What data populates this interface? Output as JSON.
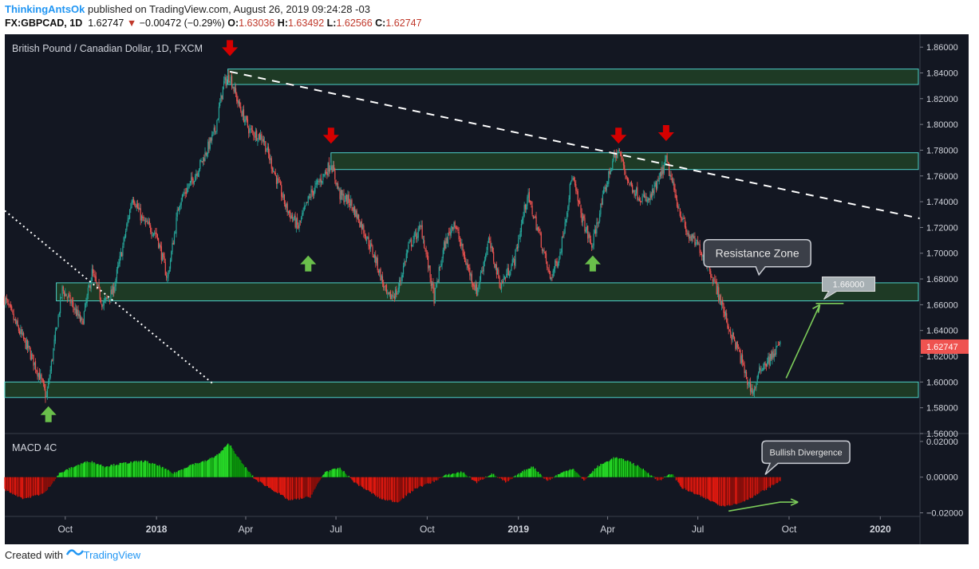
{
  "header": {
    "user": "ThinkingAntsOk",
    "published": "published on TradingView.com, August 26, 2019 09:24:28 -03",
    "symbol": "FX:GBPCAD, 1D",
    "last": "1.62747",
    "change": "−0.00472 (−0.29%)",
    "o_label": "O:",
    "o_value": "1.63036",
    "h_label": "H:",
    "h_value": "1.63492",
    "l_label": "L:",
    "l_value": "1.62566",
    "c_label": "C:",
    "c_value": "1.62747"
  },
  "footer": {
    "created_with": "Created with",
    "brand": "TradingView"
  },
  "colors": {
    "background": "#131722",
    "up": "#26a69a",
    "down": "#ef5350",
    "zone_fill": "#1e3a25",
    "zone_border": "#4dd0c8",
    "arrow_down": "#d50000",
    "arrow_up": "#6abf4b",
    "macd_up": "#26d926",
    "macd_down": "#e0180f",
    "price_tag": "#ef5350"
  },
  "chart_data": [
    {
      "type": "candlestick",
      "title": "British Pound / Canadian Dollar, 1D, FXCM",
      "ylim": [
        1.56,
        1.87
      ],
      "y_ticks": [
        "1.86000",
        "1.84000",
        "1.82000",
        "1.80000",
        "1.78000",
        "1.76000",
        "1.74000",
        "1.72000",
        "1.70000",
        "1.68000",
        "1.66000",
        "1.64000",
        "1.62000",
        "1.60000",
        "1.58000",
        "1.56000"
      ],
      "x_ticks": [
        "Oct",
        "2018",
        "Apr",
        "Jul",
        "Oct",
        "2019",
        "Apr",
        "Jul",
        "Oct",
        "2020"
      ],
      "x_start": "2017-08-01",
      "x_end": "2020-02-10",
      "last_price": "1.62747",
      "close_path": [
        [
          "2017-08-01",
          1.665
        ],
        [
          "2017-08-12",
          1.645
        ],
        [
          "2017-08-25",
          1.625
        ],
        [
          "2017-09-05",
          1.605
        ],
        [
          "2017-09-12",
          1.588
        ],
        [
          "2017-09-20",
          1.63
        ],
        [
          "2017-09-28",
          1.672
        ],
        [
          "2017-10-08",
          1.66
        ],
        [
          "2017-10-18",
          1.645
        ],
        [
          "2017-10-28",
          1.685
        ],
        [
          "2017-11-08",
          1.66
        ],
        [
          "2017-11-18",
          1.67
        ],
        [
          "2017-11-28",
          1.705
        ],
        [
          "2017-12-08",
          1.745
        ],
        [
          "2017-12-18",
          1.725
        ],
        [
          "2018-01-01",
          1.715
        ],
        [
          "2018-01-12",
          1.68
        ],
        [
          "2018-01-24",
          1.74
        ],
        [
          "2018-02-05",
          1.755
        ],
        [
          "2018-02-18",
          1.775
        ],
        [
          "2018-03-01",
          1.795
        ],
        [
          "2018-03-10",
          1.832
        ],
        [
          "2018-03-16",
          1.838
        ],
        [
          "2018-03-25",
          1.815
        ],
        [
          "2018-04-05",
          1.795
        ],
        [
          "2018-04-18",
          1.79
        ],
        [
          "2018-05-01",
          1.76
        ],
        [
          "2018-05-12",
          1.735
        ],
        [
          "2018-05-24",
          1.72
        ],
        [
          "2018-06-05",
          1.745
        ],
        [
          "2018-06-18",
          1.76
        ],
        [
          "2018-06-26",
          1.77
        ],
        [
          "2018-07-05",
          1.745
        ],
        [
          "2018-07-15",
          1.74
        ],
        [
          "2018-07-28",
          1.72
        ],
        [
          "2018-08-10",
          1.695
        ],
        [
          "2018-08-22",
          1.665
        ],
        [
          "2018-09-01",
          1.67
        ],
        [
          "2018-09-12",
          1.705
        ],
        [
          "2018-09-25",
          1.72
        ],
        [
          "2018-10-08",
          1.665
        ],
        [
          "2018-10-18",
          1.705
        ],
        [
          "2018-10-28",
          1.725
        ],
        [
          "2018-11-08",
          1.695
        ],
        [
          "2018-11-20",
          1.67
        ],
        [
          "2018-12-02",
          1.71
        ],
        [
          "2018-12-14",
          1.675
        ],
        [
          "2018-12-28",
          1.695
        ],
        [
          "2019-01-10",
          1.745
        ],
        [
          "2019-01-22",
          1.715
        ],
        [
          "2019-02-02",
          1.68
        ],
        [
          "2019-02-12",
          1.7
        ],
        [
          "2019-02-24",
          1.76
        ],
        [
          "2019-03-06",
          1.728
        ],
        [
          "2019-03-16",
          1.705
        ],
        [
          "2019-03-28",
          1.745
        ],
        [
          "2019-04-06",
          1.772
        ],
        [
          "2019-04-12",
          1.78
        ],
        [
          "2019-04-22",
          1.755
        ],
        [
          "2019-05-02",
          1.745
        ],
        [
          "2019-05-12",
          1.74
        ],
        [
          "2019-05-22",
          1.755
        ],
        [
          "2019-05-30",
          1.772
        ],
        [
          "2019-06-10",
          1.74
        ],
        [
          "2019-06-20",
          1.715
        ],
        [
          "2019-07-02",
          1.705
        ],
        [
          "2019-07-12",
          1.69
        ],
        [
          "2019-07-22",
          1.668
        ],
        [
          "2019-08-02",
          1.64
        ],
        [
          "2019-08-12",
          1.622
        ],
        [
          "2019-08-20",
          1.6
        ],
        [
          "2019-08-26",
          1.592
        ],
        [
          "2019-09-03",
          1.612
        ],
        [
          "2019-09-12",
          1.618
        ],
        [
          "2019-09-22",
          1.63
        ]
      ],
      "zones": [
        {
          "start": "2018-03-14",
          "top": 1.843,
          "bottom": 1.831
        },
        {
          "start": "2018-06-26",
          "top": 1.778,
          "bottom": 1.765
        },
        {
          "start": "2017-09-22",
          "top": 1.677,
          "bottom": 1.663
        },
        {
          "start": "2017-08-01",
          "top": 1.6,
          "bottom": 1.588
        }
      ],
      "trendlines": [
        {
          "style": "dashed",
          "points": [
            [
              "2018-03-16",
              1.841
            ],
            [
              "2020-02-10",
              1.727
            ]
          ]
        },
        {
          "style": "dotted",
          "points": [
            [
              "2017-08-01",
              1.733
            ],
            [
              "2018-02-28",
              1.598
            ]
          ]
        },
        {
          "style": "solid",
          "points": [
            [
              "2019-09-28",
              1.603
            ],
            [
              "2019-11-01",
              1.66
            ]
          ]
        }
      ],
      "markers_down": [
        [
          "2018-03-16",
          1.858
        ],
        [
          "2018-06-26",
          1.79
        ],
        [
          "2019-04-12",
          1.79
        ],
        [
          "2019-05-30",
          1.792
        ]
      ],
      "markers_up": [
        [
          "2017-09-14",
          1.575
        ],
        [
          "2018-06-03",
          1.692
        ],
        [
          "2019-03-17",
          1.692
        ]
      ],
      "annotations": [
        {
          "text": "Resistance Zone",
          "x": "2019-08-30",
          "y": 1.7
        },
        {
          "text": "1.66000",
          "x": "2019-11-30",
          "y": 1.676
        }
      ]
    },
    {
      "type": "bar",
      "title": "MACD 4C",
      "ylim": [
        -0.022,
        0.024
      ],
      "y_ticks": [
        "0.02000",
        "0.00000",
        "−0.02000"
      ],
      "histogram_path": [
        [
          "2017-08-01",
          -0.007
        ],
        [
          "2017-08-20",
          -0.012
        ],
        [
          "2017-09-10",
          -0.009
        ],
        [
          "2017-09-25",
          0.002
        ],
        [
          "2017-10-10",
          0.006
        ],
        [
          "2017-10-25",
          0.009
        ],
        [
          "2017-11-10",
          0.006
        ],
        [
          "2017-12-01",
          0.008
        ],
        [
          "2017-12-20",
          0.009
        ],
        [
          "2018-01-05",
          0.006
        ],
        [
          "2018-01-18",
          0.002
        ],
        [
          "2018-02-05",
          0.007
        ],
        [
          "2018-02-20",
          0.009
        ],
        [
          "2018-03-05",
          0.013
        ],
        [
          "2018-03-15",
          0.019
        ],
        [
          "2018-03-28",
          0.008
        ],
        [
          "2018-04-10",
          -0.001
        ],
        [
          "2018-04-28",
          -0.007
        ],
        [
          "2018-05-15",
          -0.013
        ],
        [
          "2018-06-05",
          -0.011
        ],
        [
          "2018-06-20",
          0.003
        ],
        [
          "2018-07-05",
          0.005
        ],
        [
          "2018-07-20",
          -0.003
        ],
        [
          "2018-08-15",
          -0.012
        ],
        [
          "2018-09-01",
          -0.014
        ],
        [
          "2018-09-20",
          -0.006
        ],
        [
          "2018-10-05",
          -0.003
        ],
        [
          "2018-10-20",
          0.001
        ],
        [
          "2018-11-05",
          0.003
        ],
        [
          "2018-11-20",
          -0.003
        ],
        [
          "2018-12-05",
          0.002
        ],
        [
          "2018-12-20",
          -0.003
        ],
        [
          "2019-01-05",
          0.003
        ],
        [
          "2019-01-15",
          0.006
        ],
        [
          "2019-01-30",
          -0.002
        ],
        [
          "2019-02-12",
          0.002
        ],
        [
          "2019-02-25",
          0.005
        ],
        [
          "2019-03-08",
          -0.002
        ],
        [
          "2019-03-22",
          0.006
        ],
        [
          "2019-04-08",
          0.011
        ],
        [
          "2019-04-22",
          0.009
        ],
        [
          "2019-05-08",
          0.004
        ],
        [
          "2019-05-22",
          -0.002
        ],
        [
          "2019-06-05",
          0.002
        ],
        [
          "2019-06-15",
          -0.006
        ],
        [
          "2019-07-05",
          -0.011
        ],
        [
          "2019-07-25",
          -0.016
        ],
        [
          "2019-08-10",
          -0.015
        ],
        [
          "2019-08-25",
          -0.011
        ],
        [
          "2019-09-10",
          -0.006
        ],
        [
          "2019-09-22",
          -0.002
        ]
      ],
      "divergence_line": [
        [
          "2019-08-01",
          -0.019
        ],
        [
          "2019-09-22",
          -0.014
        ],
        [
          "2019-10-10",
          -0.014
        ]
      ],
      "annotations": [
        {
          "text": "Bullish Divergence",
          "x": "2019-10-18",
          "y": 0.014
        }
      ]
    }
  ]
}
